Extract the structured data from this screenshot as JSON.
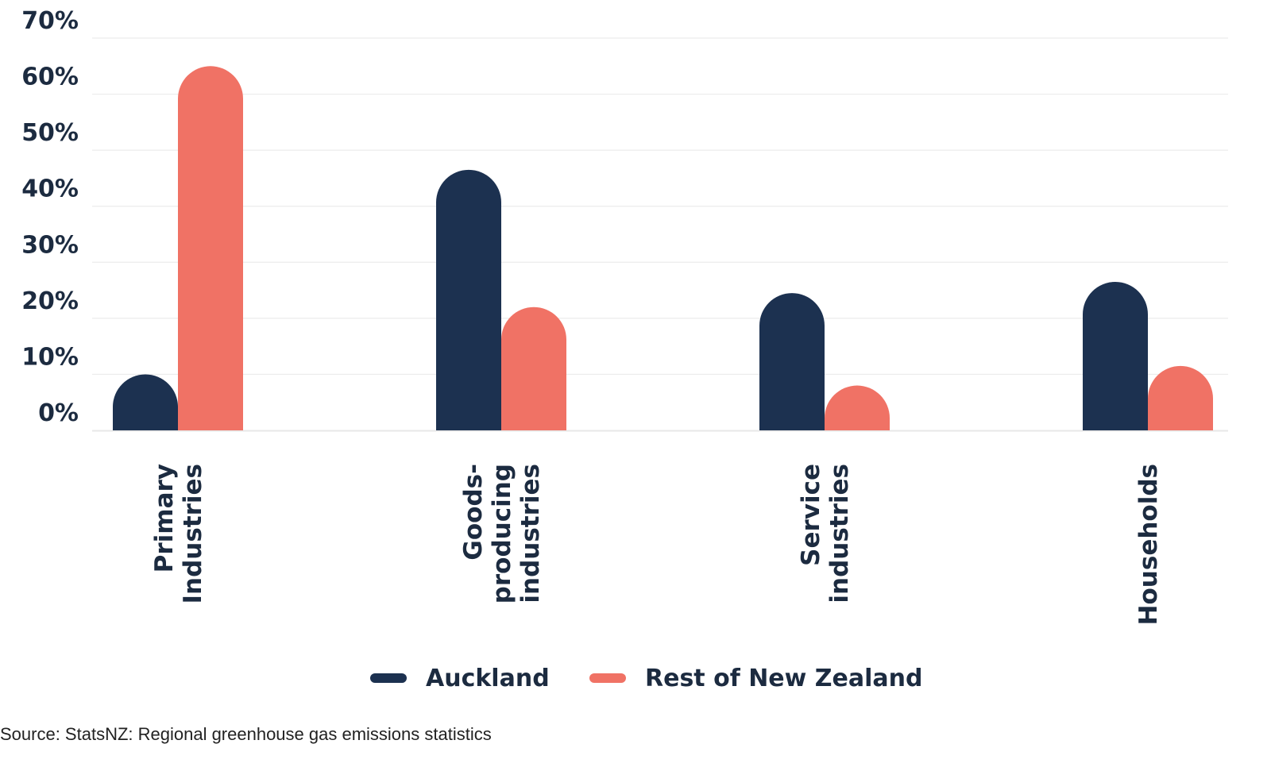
{
  "chart_data": {
    "type": "bar",
    "title": "",
    "xlabel": "",
    "ylabel": "",
    "ylim": [
      0,
      70
    ],
    "yticks": [
      "0%",
      "10%",
      "20%",
      "30%",
      "40%",
      "50%",
      "60%",
      "70%"
    ],
    "grid": true,
    "legend_position": "bottom",
    "categories": [
      [
        "Primary",
        "Industries"
      ],
      [
        "Goods-",
        "producing",
        "industries"
      ],
      [
        "Service",
        "industries"
      ],
      [
        "Households"
      ]
    ],
    "series": [
      {
        "name": "Auckland",
        "color": "#1c3150",
        "values": [
          10,
          46.5,
          24.5,
          26.5
        ]
      },
      {
        "name": "Rest of New Zealand",
        "color": "#f07265",
        "values": [
          65,
          22,
          8,
          11.5
        ]
      }
    ]
  },
  "legend": {
    "items": [
      {
        "label": "Auckland",
        "color": "#1c3150"
      },
      {
        "label": "Rest of New Zealand",
        "color": "#f07265"
      }
    ]
  },
  "source": "Source: StatsNZ: Regional greenhouse gas emissions statistics"
}
